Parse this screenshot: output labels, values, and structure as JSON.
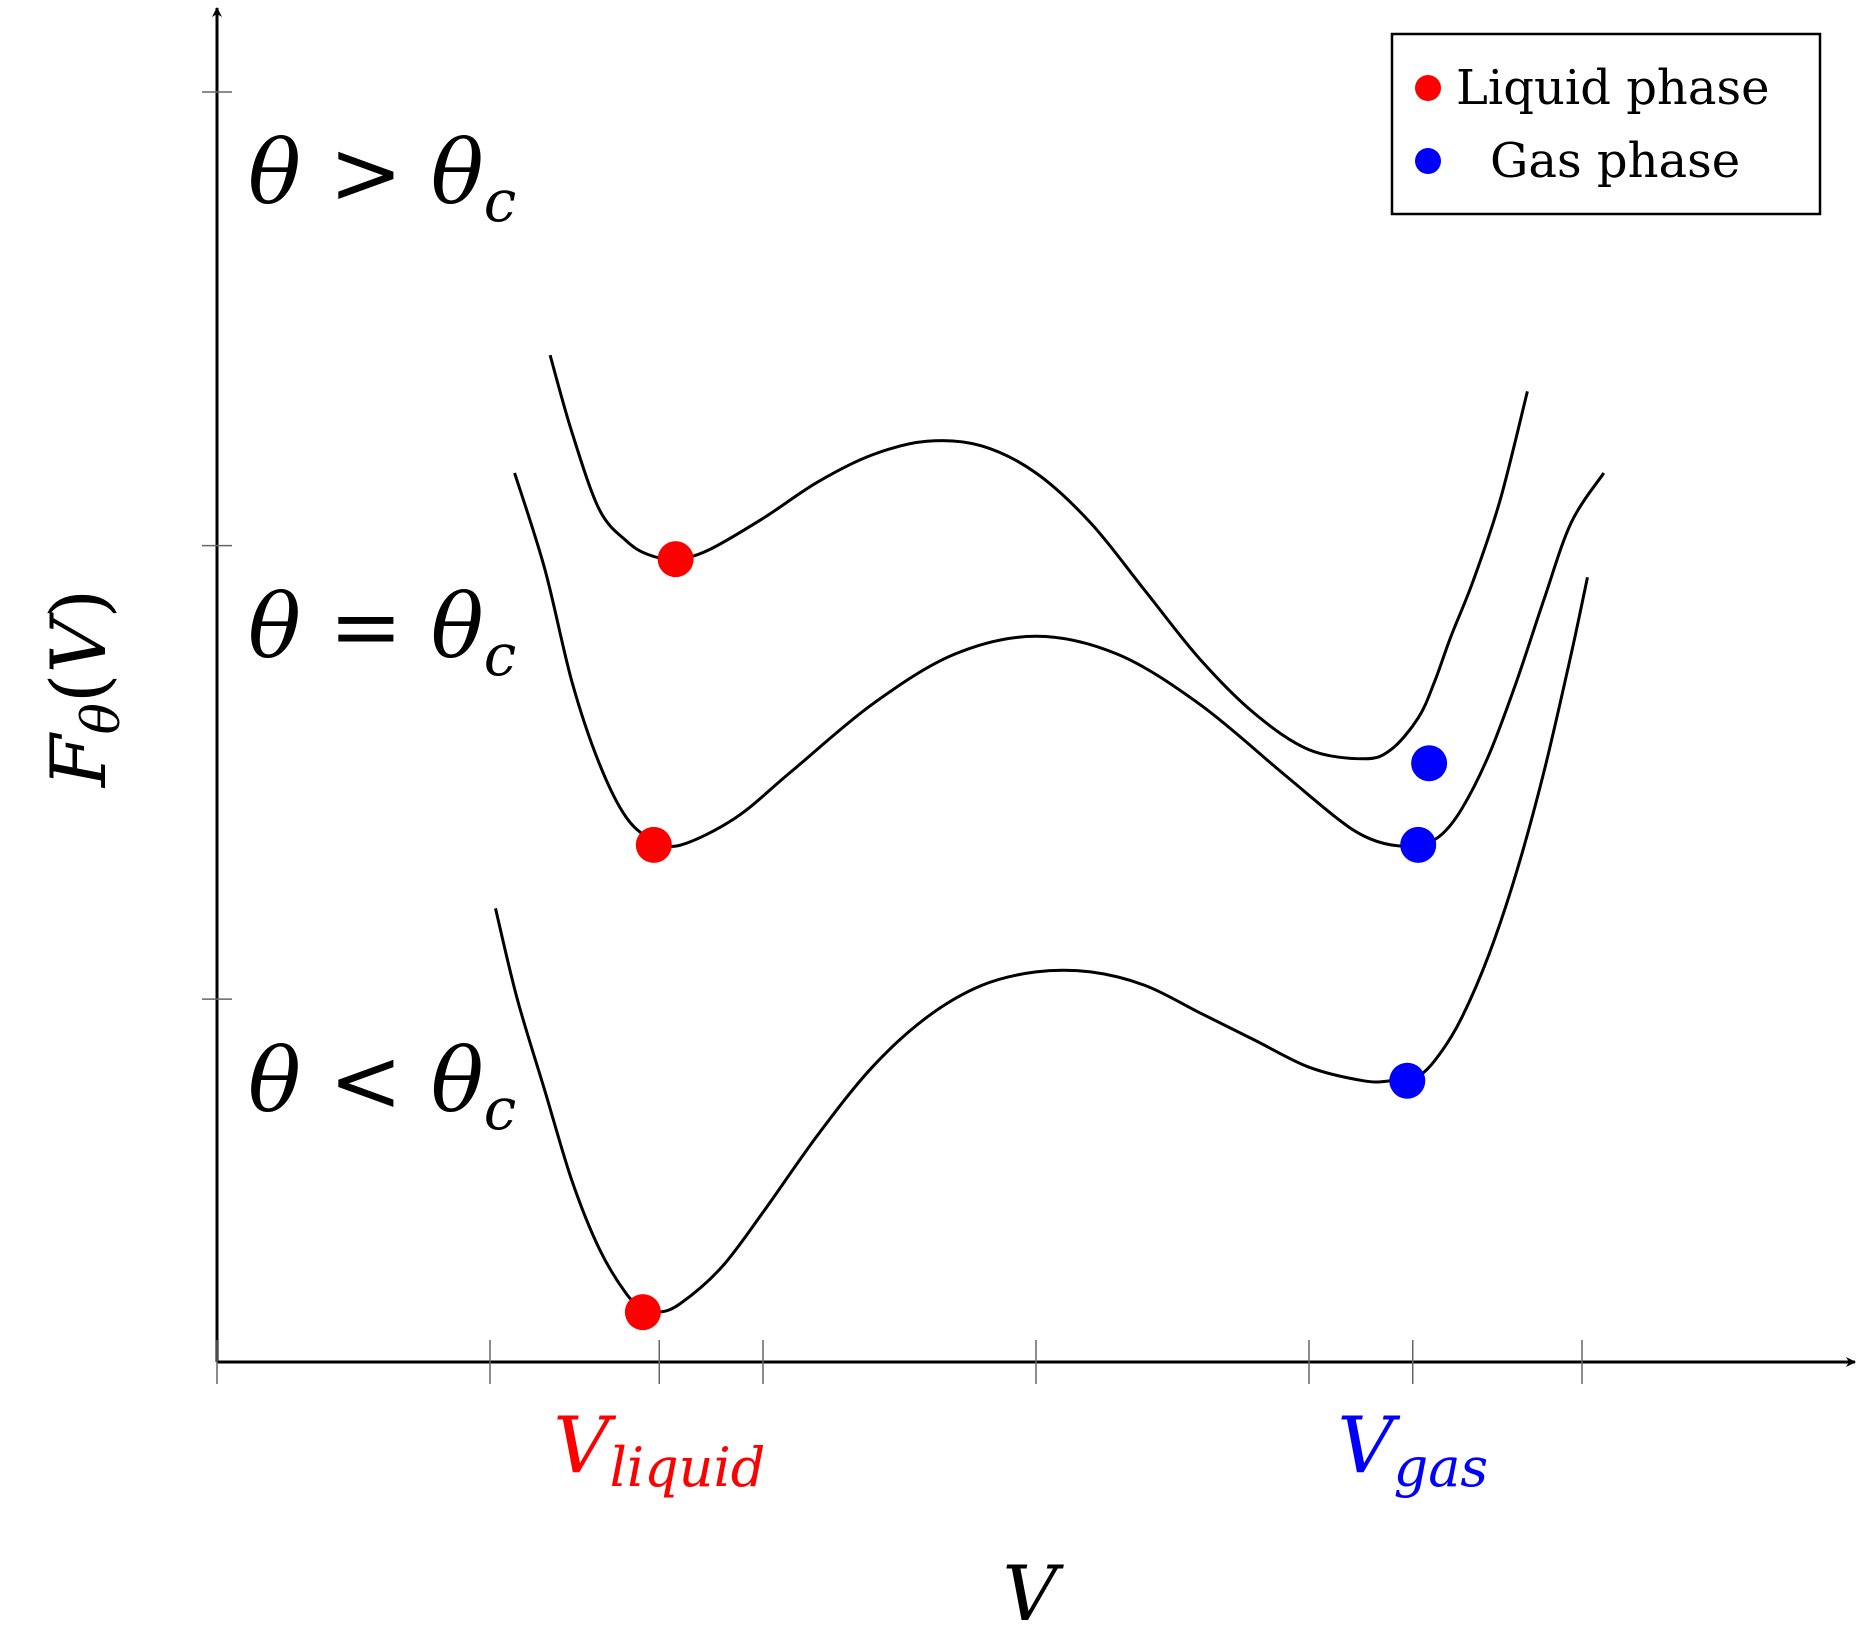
{
  "chart_data": {
    "type": "line",
    "xlabel": "V",
    "ylabel": "F_θ(V)",
    "xlim": [
      0,
      6
    ],
    "ylim": [
      0,
      2.8
    ],
    "x_ticks": [
      0,
      1,
      1.62,
      2,
      3,
      4,
      4.38,
      5
    ],
    "y_ticks": [
      0.8,
      1.8,
      2.8
    ],
    "x_tick_labels": [
      {
        "x": 1.62,
        "main": "V",
        "sub": "liquid",
        "color": "#ff0000"
      },
      {
        "x": 4.38,
        "main": "V",
        "sub": "gas",
        "color": "#0000ff"
      }
    ],
    "series": [
      {
        "label_left": "θ",
        "label_rel": ">",
        "label_right": "θ",
        "label_sub": "c",
        "x": [
          1.22,
          1.3,
          1.4,
          1.5,
          1.58,
          1.68,
          1.8,
          2.0,
          2.2,
          2.4,
          2.6,
          2.8,
          3.0,
          3.2,
          3.4,
          3.6,
          3.8,
          4.0,
          4.2,
          4.3,
          4.4,
          4.46,
          4.52,
          4.6,
          4.7,
          4.8
        ],
        "y": [
          2.22,
          2.05,
          1.88,
          1.81,
          1.78,
          1.77,
          1.79,
          1.86,
          1.94,
          2.0,
          2.03,
          2.02,
          1.96,
          1.85,
          1.7,
          1.55,
          1.43,
          1.35,
          1.33,
          1.35,
          1.42,
          1.5,
          1.6,
          1.72,
          1.9,
          2.14
        ],
        "liquid_min": {
          "x": 1.68,
          "y": 1.77
        },
        "gas_min": {
          "x": 4.44,
          "y": 1.32
        }
      },
      {
        "label_left": "θ",
        "label_rel": "=",
        "label_right": "θ",
        "label_sub": "c",
        "x": [
          1.09,
          1.2,
          1.3,
          1.4,
          1.5,
          1.6,
          1.7,
          1.9,
          2.1,
          2.4,
          2.7,
          3.0,
          3.3,
          3.6,
          3.9,
          4.1,
          4.2,
          4.3,
          4.4,
          4.48,
          4.56,
          4.66,
          4.76,
          4.86,
          4.96,
          5.08
        ],
        "y": [
          1.96,
          1.75,
          1.5,
          1.32,
          1.2,
          1.15,
          1.14,
          1.2,
          1.3,
          1.45,
          1.56,
          1.6,
          1.56,
          1.45,
          1.3,
          1.2,
          1.16,
          1.14,
          1.14,
          1.16,
          1.22,
          1.34,
          1.5,
          1.68,
          1.85,
          1.96
        ],
        "liquid_min": {
          "x": 1.6,
          "y": 1.14
        },
        "gas_min": {
          "x": 4.4,
          "y": 1.14
        }
      },
      {
        "label_left": "θ",
        "label_rel": "<",
        "label_right": "θ",
        "label_sub": "c",
        "x": [
          1.02,
          1.1,
          1.2,
          1.3,
          1.4,
          1.5,
          1.56,
          1.62,
          1.7,
          1.85,
          2.0,
          2.2,
          2.4,
          2.6,
          2.8,
          3.0,
          3.2,
          3.4,
          3.6,
          3.8,
          4.0,
          4.2,
          4.3,
          4.4,
          4.48,
          4.56,
          4.66,
          4.76,
          4.86,
          4.96,
          5.02
        ],
        "y": [
          1.0,
          0.8,
          0.6,
          0.4,
          0.25,
          0.15,
          0.12,
          0.11,
          0.13,
          0.21,
          0.33,
          0.5,
          0.65,
          0.76,
          0.83,
          0.86,
          0.86,
          0.83,
          0.77,
          0.71,
          0.65,
          0.62,
          0.62,
          0.63,
          0.68,
          0.76,
          0.9,
          1.08,
          1.3,
          1.56,
          1.73
        ],
        "liquid_min": {
          "x": 1.56,
          "y": 0.11
        },
        "gas_min": {
          "x": 4.36,
          "y": 0.62
        }
      }
    ],
    "legend": {
      "position": "top-right",
      "entries": [
        {
          "label": "Liquid phase",
          "color": "#ff0000"
        },
        {
          "label": "Gas phase",
          "color": "#0000ff"
        }
      ]
    },
    "grid": false,
    "title": ""
  }
}
